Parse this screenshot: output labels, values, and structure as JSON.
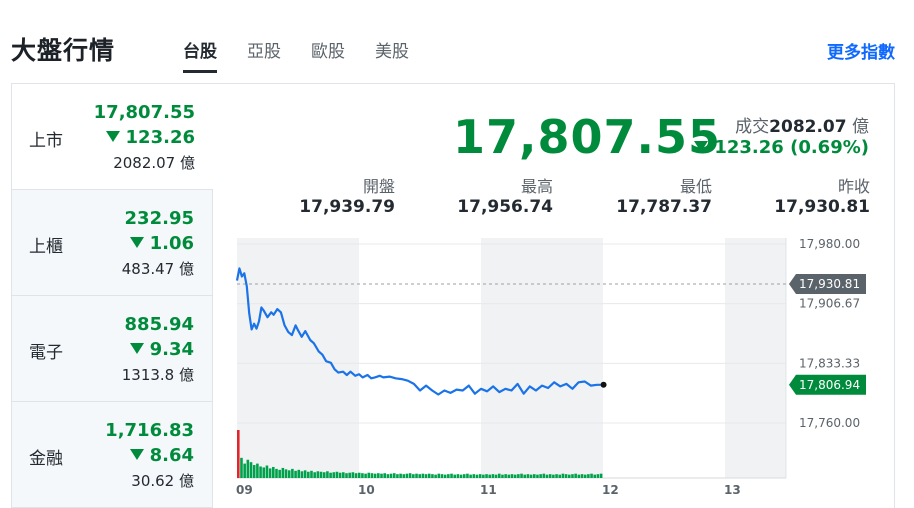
{
  "header": {
    "title": "大盤行情",
    "tabs": [
      {
        "label": "台股",
        "active": true
      },
      {
        "label": "亞股",
        "active": false
      },
      {
        "label": "歐股",
        "active": false
      },
      {
        "label": "美股",
        "active": false
      }
    ],
    "more_label": "更多指數"
  },
  "sidebar": {
    "items": [
      {
        "name": "上市",
        "price": "17,807.55",
        "change": "123.26",
        "volume": "2082.07 億",
        "active": true
      },
      {
        "name": "上櫃",
        "price": "232.95",
        "change": "1.06",
        "volume": "483.47 億",
        "active": false
      },
      {
        "name": "電子",
        "price": "885.94",
        "change": "9.34",
        "volume": "1313.8 億",
        "active": false
      },
      {
        "name": "金融",
        "price": "1,716.83",
        "change": "8.64",
        "volume": "30.62 億",
        "active": false
      }
    ]
  },
  "quote": {
    "price": "17,807.55",
    "turnover_label": "成交",
    "turnover_value": "2082.07",
    "turnover_unit": "億",
    "change": "123.26 (0.69%)",
    "stats": [
      {
        "label": "開盤",
        "value": "17,939.79"
      },
      {
        "label": "最高",
        "value": "17,956.74"
      },
      {
        "label": "最低",
        "value": "17,787.37"
      },
      {
        "label": "昨收",
        "value": "17,930.81"
      }
    ]
  },
  "colors": {
    "down": "#008b3c",
    "line": "#1a73e8",
    "volume": "#00a14b",
    "volume_first": "#e0262c",
    "link": "#0f69ff",
    "prev_close_tag": "#5b636a"
  },
  "chart_data": {
    "type": "line",
    "x_ticks": [
      "09",
      "10",
      "11",
      "12",
      "13"
    ],
    "x_range": [
      9.0,
      13.5
    ],
    "y_ticks": [
      "17,980.00",
      "17,906.67",
      "17,833.33",
      "17,760.00"
    ],
    "y_range": [
      17760.0,
      17980.0
    ],
    "prev_close": 17930.81,
    "prev_close_label": "17,930.81",
    "last_value": 17806.94,
    "last_label": "17,806.94",
    "grid": true,
    "series": [
      {
        "x": [
          9.0,
          9.02,
          9.04,
          9.06,
          9.08,
          9.1,
          9.12,
          9.14,
          9.16,
          9.18,
          9.2,
          9.22,
          9.25,
          9.28,
          9.3,
          9.33,
          9.36,
          9.39,
          9.42,
          9.45,
          9.48,
          9.5,
          9.53,
          9.56,
          9.6,
          9.63,
          9.67,
          9.7,
          9.73,
          9.77,
          9.8,
          9.83,
          9.87,
          9.9,
          9.93,
          9.97,
          10.0,
          10.03,
          10.07,
          10.1,
          10.13,
          10.17,
          10.2,
          10.25,
          10.3,
          10.35,
          10.4,
          10.45,
          10.5,
          10.55,
          10.6,
          10.65,
          10.7,
          10.75,
          10.8,
          10.85,
          10.9,
          10.95,
          11.0,
          11.05,
          11.1,
          11.15,
          11.2,
          11.25,
          11.3,
          11.35,
          11.4,
          11.45,
          11.5,
          11.55,
          11.6,
          11.65,
          11.7,
          11.75,
          11.8,
          11.85,
          11.9,
          11.95,
          11.98
        ],
        "y": [
          17935,
          17950,
          17940,
          17944,
          17928,
          17895,
          17875,
          17882,
          17876,
          17885,
          17902,
          17898,
          17890,
          17896,
          17893,
          17900,
          17896,
          17880,
          17872,
          17868,
          17880,
          17874,
          17866,
          17873,
          17862,
          17858,
          17848,
          17844,
          17836,
          17834,
          17826,
          17822,
          17823,
          17819,
          17823,
          17818,
          17820,
          17816,
          17819,
          17815,
          17816,
          17818,
          17816,
          17817,
          17815,
          17814,
          17812,
          17808,
          17800,
          17806,
          17800,
          17795,
          17800,
          17797,
          17801,
          17800,
          17806,
          17796,
          17802,
          17799,
          17805,
          17798,
          17802,
          17800,
          17808,
          17796,
          17805,
          17800,
          17806,
          17803,
          17810,
          17805,
          17808,
          17802,
          17810,
          17811,
          17806,
          17807,
          17807
        ]
      }
    ],
    "volume": [
      100,
      42,
      30,
      38,
      33,
      27,
      30,
      24,
      22,
      26,
      20,
      23,
      19,
      17,
      21,
      18,
      16,
      19,
      15,
      17,
      14,
      16,
      13,
      15,
      12,
      14,
      13,
      12,
      14,
      11,
      12,
      13,
      11,
      12,
      10,
      11,
      12,
      10,
      11,
      10,
      9,
      11,
      10,
      9,
      10,
      9,
      10,
      8,
      9,
      10,
      8,
      9,
      8,
      9,
      10,
      8,
      9,
      8,
      9,
      8,
      9,
      8,
      7,
      9,
      8,
      7,
      8,
      9,
      7,
      8,
      7,
      8,
      9,
      7,
      8,
      7,
      8,
      7,
      8,
      7,
      8,
      7,
      9,
      7,
      8,
      7,
      8,
      7,
      8,
      9,
      7,
      8,
      7,
      8,
      7,
      8,
      9,
      7,
      8,
      7,
      8,
      7,
      9,
      8,
      7,
      8,
      9,
      7,
      8,
      7,
      8,
      9,
      7,
      8,
      9
    ]
  }
}
